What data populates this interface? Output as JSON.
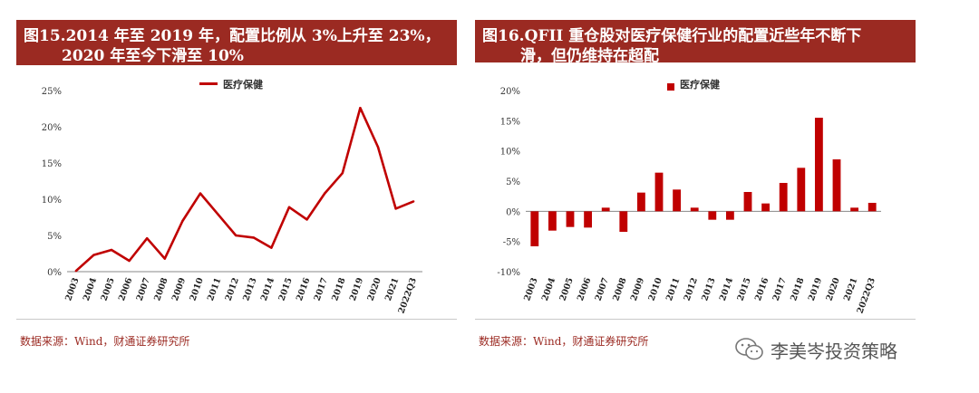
{
  "left": {
    "title_line1": "图15.2014 年至 2019 年，配置比例从 3%上升至 23%，",
    "title_line2": "2020 年至今下滑至 10%",
    "source": "数据来源：Wind，财通证券研究所"
  },
  "right": {
    "title_line1": "图16.QFII 重仓股对医疗保健行业的配置近些年不断下",
    "title_line2": "滑，但仍维持在超配",
    "source": "数据来源：Wind，财通证券研究所"
  },
  "watermark": {
    "text": "李美岑投资策略",
    "icon": "wechat-icon"
  },
  "colors": {
    "accent": "#9b2a22",
    "series": "#c00000"
  },
  "chart_data": [
    {
      "type": "line",
      "legend": "医疗保健",
      "legend_position": "top-center",
      "categories": [
        "2003",
        "2004",
        "2005",
        "2006",
        "2007",
        "2008",
        "2009",
        "2010",
        "2011",
        "2012",
        "2013",
        "2014",
        "2015",
        "2016",
        "2017",
        "2018",
        "2019",
        "2020",
        "2021",
        "2022Q3"
      ],
      "values": [
        0.1,
        2.3,
        3.0,
        1.5,
        4.6,
        1.8,
        7.0,
        10.8,
        7.9,
        5.0,
        4.7,
        3.3,
        8.9,
        7.2,
        10.8,
        13.6,
        22.6,
        17.2,
        8.7,
        9.7
      ],
      "y_ticks": [
        "0%",
        "5%",
        "10%",
        "15%",
        "20%",
        "25%"
      ],
      "ylim": [
        0,
        25
      ],
      "grid": false
    },
    {
      "type": "bar",
      "legend": "医疗保健",
      "legend_position": "top-center",
      "categories": [
        "2003",
        "2004",
        "2005",
        "2006",
        "2007",
        "2008",
        "2009",
        "2010",
        "2011",
        "2012",
        "2013",
        "2014",
        "2015",
        "2016",
        "2017",
        "2018",
        "2019",
        "2020",
        "2021",
        "2022Q3"
      ],
      "values": [
        -5.8,
        -3.2,
        -2.6,
        -2.7,
        0.6,
        -3.4,
        3.1,
        6.4,
        3.6,
        0.6,
        -1.4,
        -1.4,
        3.2,
        1.3,
        4.7,
        7.2,
        15.5,
        8.6,
        0.6,
        1.4
      ],
      "y_ticks": [
        "-10%",
        "-5%",
        "0%",
        "5%",
        "10%",
        "15%",
        "20%"
      ],
      "ylim": [
        -10,
        20
      ],
      "grid": false
    }
  ]
}
